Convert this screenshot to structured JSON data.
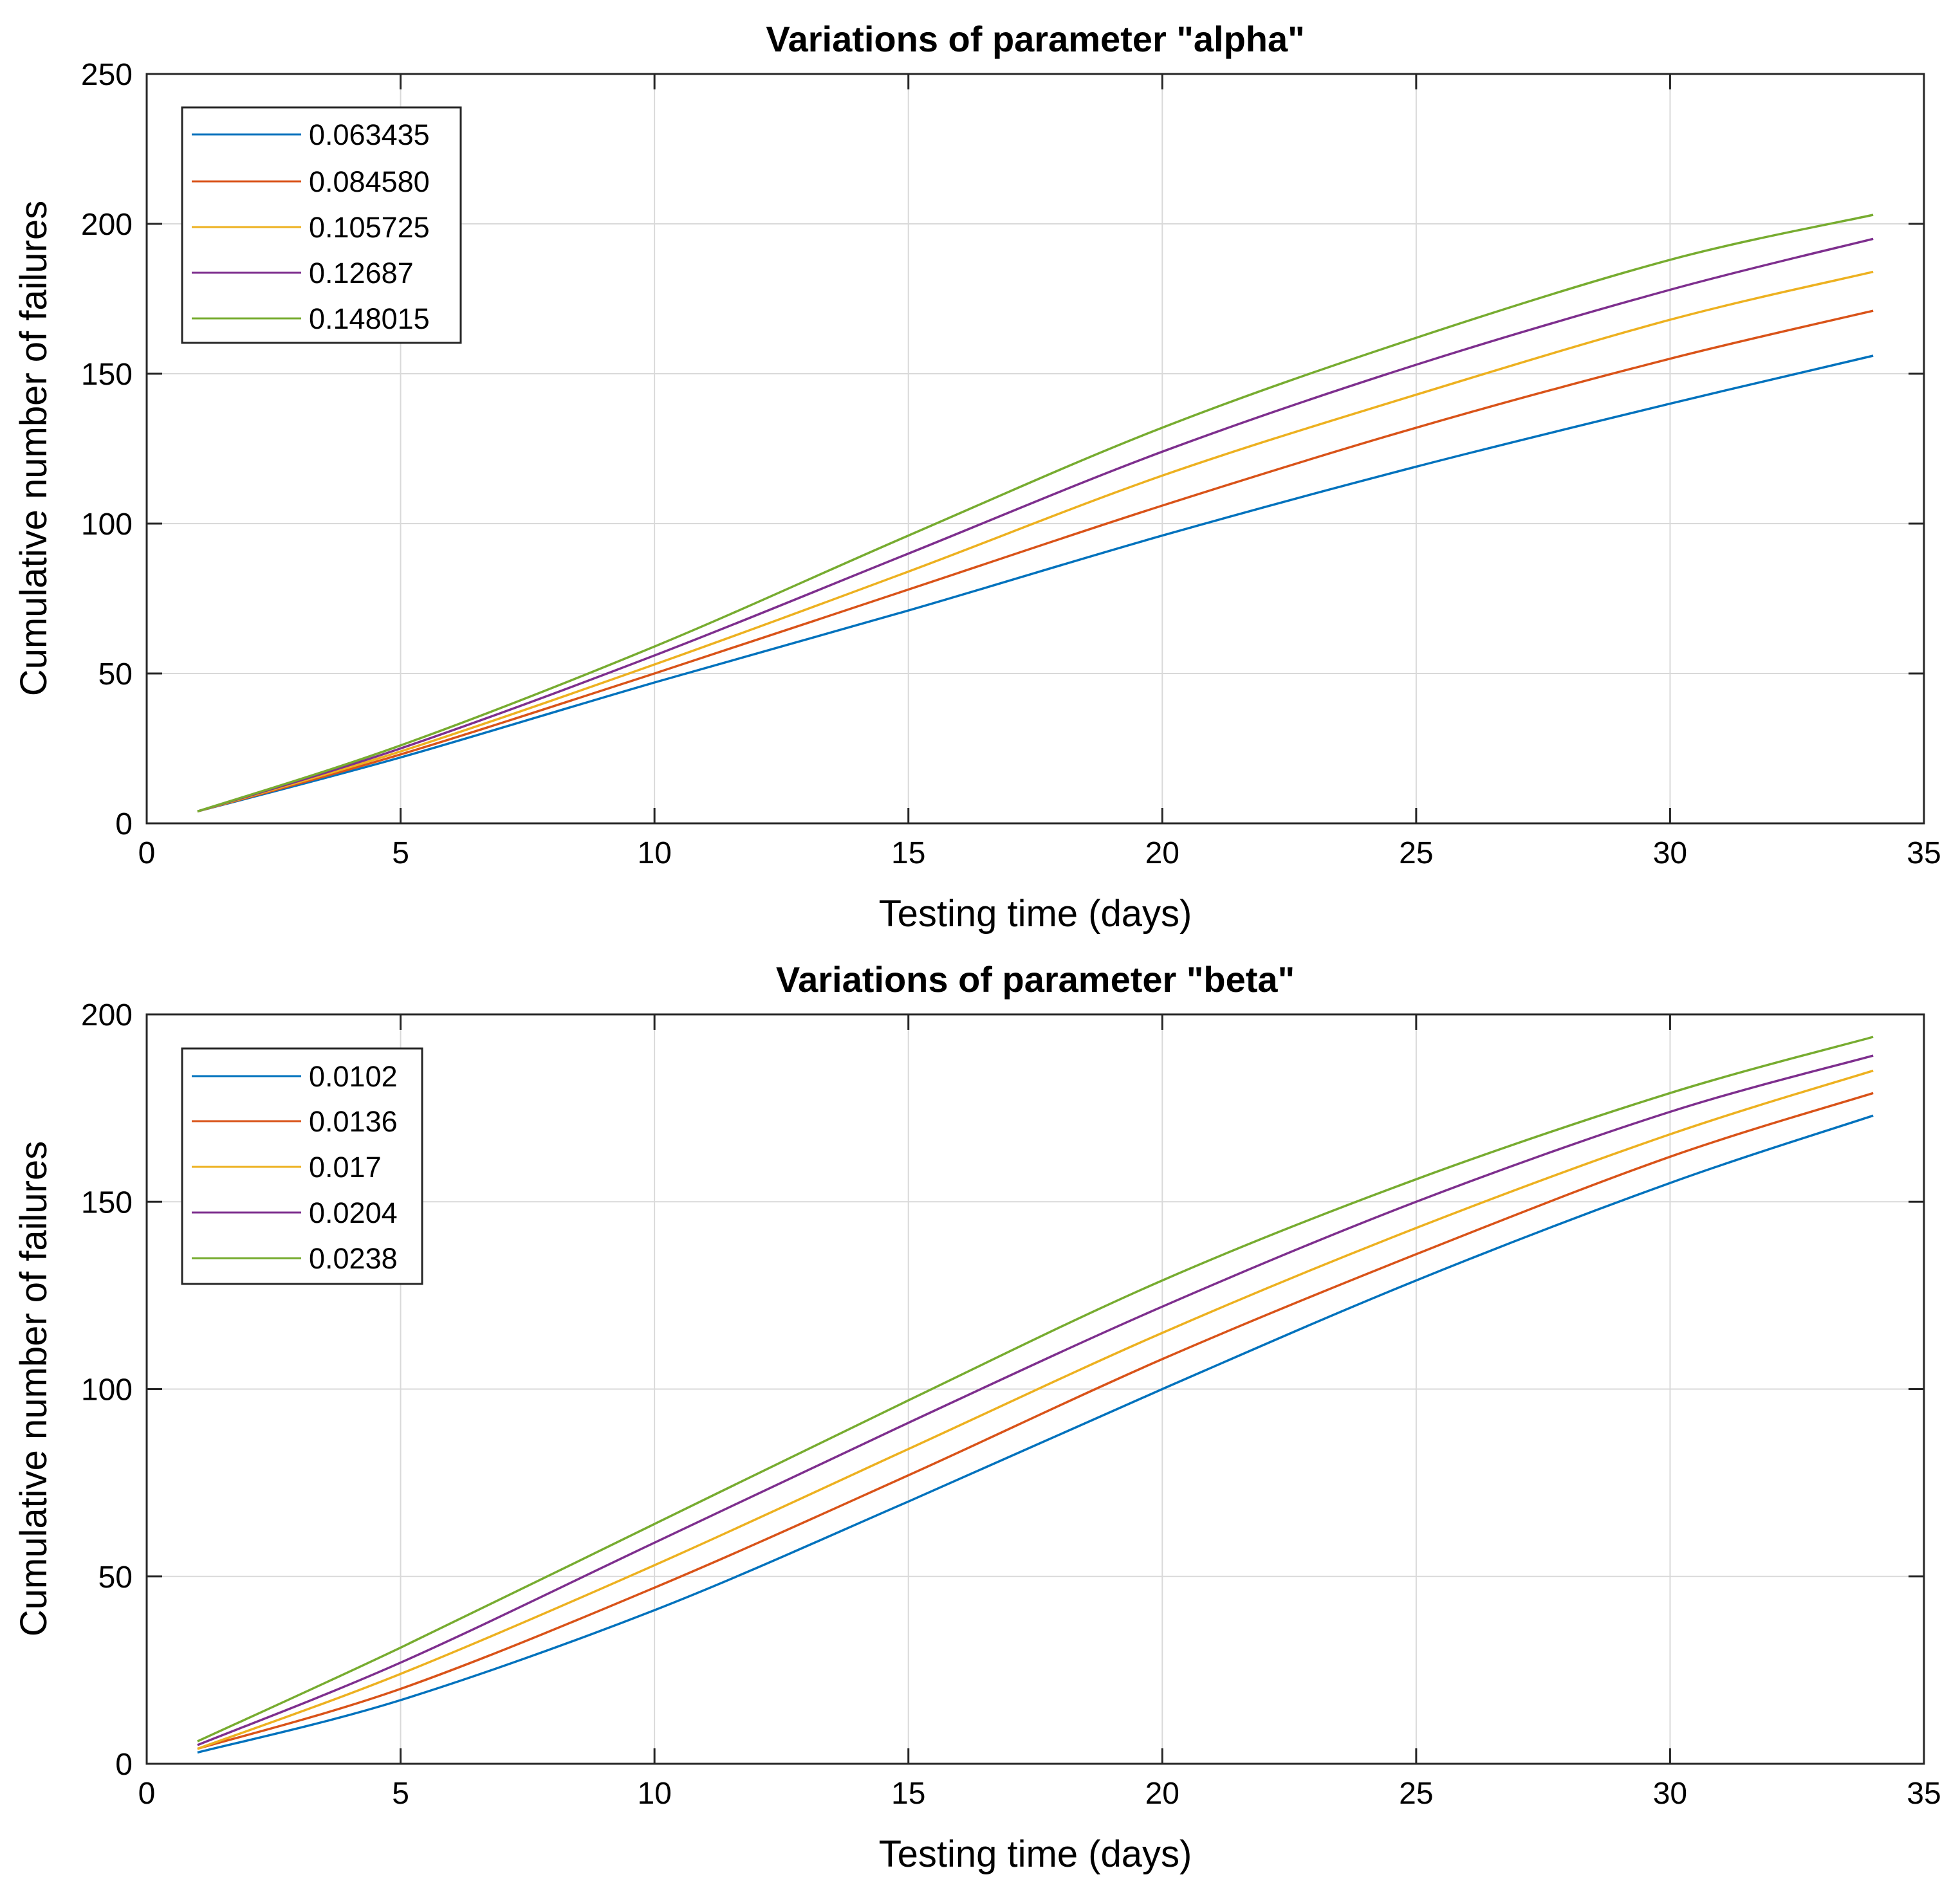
{
  "chart_data": [
    {
      "type": "line",
      "title": "Variations of parameter \"alpha\"",
      "xlabel": "Testing time (days)",
      "ylabel": "Cumulative number of failures",
      "xlim": [
        0,
        35
      ],
      "ylim": [
        0,
        250
      ],
      "xticks": [
        0,
        5,
        10,
        15,
        20,
        25,
        30,
        35
      ],
      "yticks": [
        0,
        50,
        100,
        150,
        200,
        250
      ],
      "grid": true,
      "legend_position": "top-left",
      "x": [
        1,
        5,
        10,
        15,
        20,
        25,
        30,
        34
      ],
      "series": [
        {
          "name": "0.063435",
          "color": "#0072BD",
          "values": [
            4,
            22,
            47,
            71,
            96,
            119,
            140,
            156
          ]
        },
        {
          "name": "0.084580",
          "color": "#D95319",
          "values": [
            4,
            23,
            50,
            78,
            106,
            132,
            155,
            171
          ]
        },
        {
          "name": "0.105725",
          "color": "#EDB120",
          "values": [
            4,
            24,
            53,
            84,
            116,
            143,
            168,
            184
          ]
        },
        {
          "name": "0.12687",
          "color": "#7E2F8E",
          "values": [
            4,
            25,
            56,
            90,
            124,
            153,
            178,
            195
          ]
        },
        {
          "name": "0.148015",
          "color": "#77AC30",
          "values": [
            4,
            26,
            59,
            96,
            132,
            162,
            188,
            203
          ]
        }
      ]
    },
    {
      "type": "line",
      "title": "Variations of parameter \"beta\"",
      "xlabel": "Testing time (days)",
      "ylabel": "Cumulative number of failures",
      "xlim": [
        0,
        35
      ],
      "ylim": [
        0,
        200
      ],
      "xticks": [
        0,
        5,
        10,
        15,
        20,
        25,
        30,
        35
      ],
      "yticks": [
        0,
        50,
        100,
        150,
        200
      ],
      "grid": true,
      "legend_position": "top-left",
      "x": [
        1,
        5,
        10,
        15,
        20,
        25,
        30,
        34
      ],
      "series": [
        {
          "name": "0.0102",
          "color": "#0072BD",
          "values": [
            3,
            17,
            41,
            70,
            100,
            129,
            155,
            173
          ]
        },
        {
          "name": "0.0136",
          "color": "#D95319",
          "values": [
            4,
            20,
            47,
            77,
            108,
            136,
            162,
            179
          ]
        },
        {
          "name": "0.017",
          "color": "#EDB120",
          "values": [
            4,
            24,
            53,
            84,
            115,
            143,
            168,
            185
          ]
        },
        {
          "name": "0.0204",
          "color": "#7E2F8E",
          "values": [
            5,
            27,
            59,
            91,
            122,
            150,
            174,
            189
          ]
        },
        {
          "name": "0.0238",
          "color": "#77AC30",
          "values": [
            6,
            31,
            64,
            97,
            129,
            156,
            179,
            194
          ]
        }
      ]
    }
  ]
}
